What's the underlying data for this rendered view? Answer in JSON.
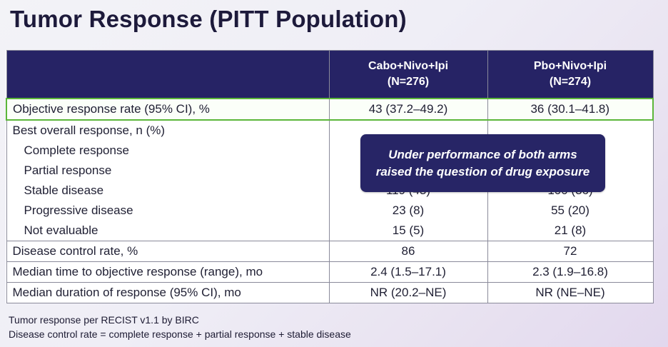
{
  "title": "Tumor Response (PITT Population)",
  "table": {
    "headers": [
      {
        "line1": "",
        "line2": ""
      },
      {
        "line1": "Cabo+Nivo+Ipi",
        "line2": "(N=276)"
      },
      {
        "line1": "Pbo+Nivo+Ipi",
        "line2": "(N=274)"
      }
    ],
    "rows": [
      {
        "label": "Objective response rate (95% CI), %",
        "a": "43 (37.2–49.2)",
        "b": "36 (30.1–41.8)"
      },
      {
        "label": "Best overall response, n (%)",
        "a": "",
        "b": ""
      },
      {
        "label": "Complete response",
        "a": "",
        "b": ""
      },
      {
        "label": "Partial response",
        "a": "",
        "b": ""
      },
      {
        "label": "Stable disease",
        "a": "119 (43)",
        "b": "100 (36)"
      },
      {
        "label": "Progressive disease",
        "a": "23 (8)",
        "b": "55 (20)"
      },
      {
        "label": "Not evaluable",
        "a": "15 (5)",
        "b": "21 (8)"
      },
      {
        "label": "Disease control rate, %",
        "a": "86",
        "b": "72"
      },
      {
        "label": "Median time to objective response (range), mo",
        "a": "2.4 (1.5–17.1)",
        "b": "2.3 (1.9–16.8)"
      },
      {
        "label": "Median duration of response (95% CI), mo",
        "a": "NR (20.2–NE)",
        "b": "NR (NE–NE)"
      }
    ]
  },
  "callout": {
    "line1": "Under performance of both arms",
    "line2": "raised the question of drug exposure"
  },
  "footnotes": [
    "Tumor response per RECIST v1.1 by BIRC",
    "Disease control rate = complete response + partial response + stable disease"
  ]
}
